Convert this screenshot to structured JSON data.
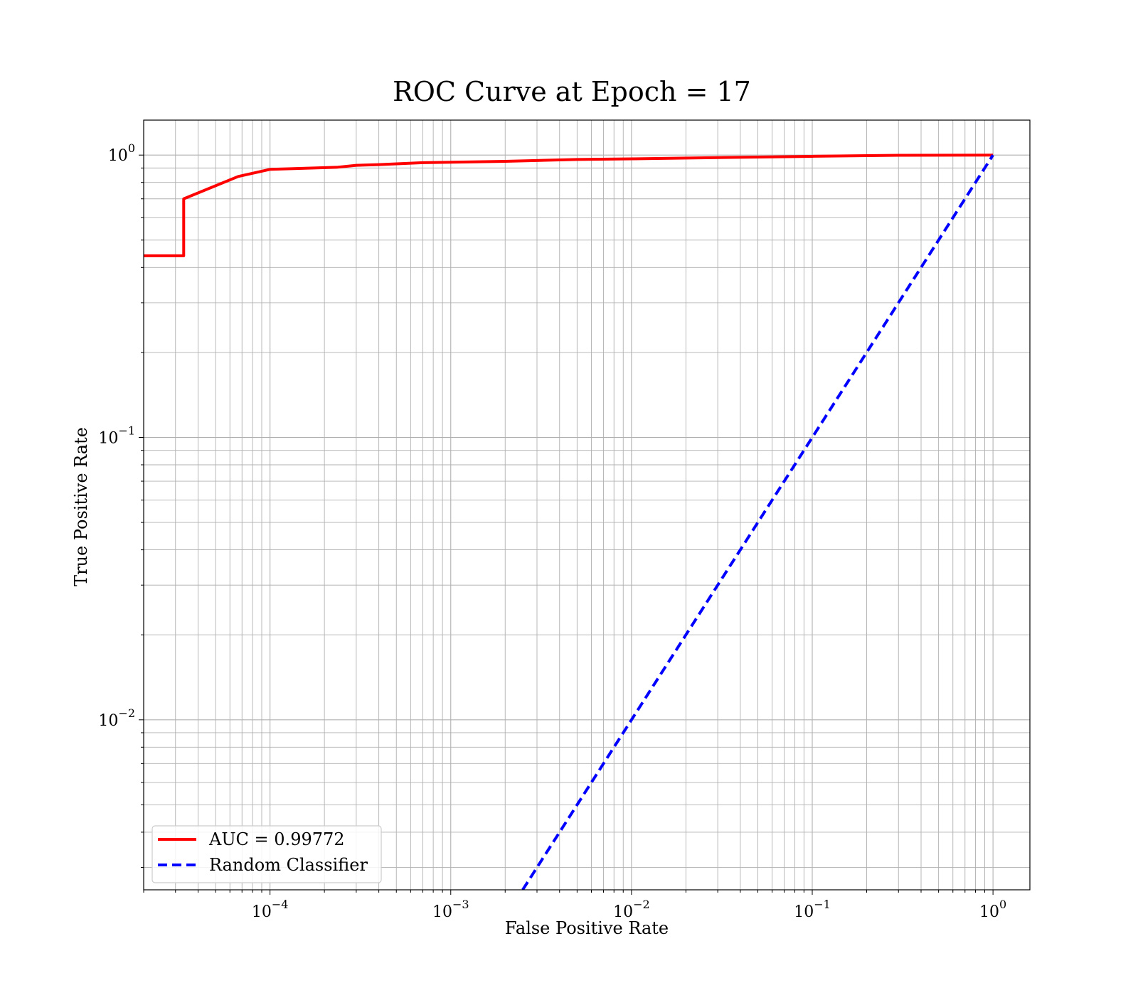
{
  "chart_data": {
    "type": "line",
    "title": "ROC Curve at Epoch = 17",
    "xlabel": "False Positive Rate",
    "ylabel": "True Positive Rate",
    "xscale": "log",
    "yscale": "log",
    "xlim": [
      2e-05,
      1.6
    ],
    "ylim": [
      0.0025,
      1.33
    ],
    "grid": true,
    "grid_minor": true,
    "legend_position": "lower-left",
    "x_ticks": [
      {
        "value": 0.0001,
        "base": "10",
        "exp": "−4"
      },
      {
        "value": 0.001,
        "base": "10",
        "exp": "−3"
      },
      {
        "value": 0.01,
        "base": "10",
        "exp": "−2"
      },
      {
        "value": 0.1,
        "base": "10",
        "exp": "−1"
      },
      {
        "value": 1,
        "base": "10",
        "exp": "0"
      }
    ],
    "y_ticks": [
      {
        "value": 0.01,
        "base": "10",
        "exp": "−2"
      },
      {
        "value": 0.1,
        "base": "10",
        "exp": "−1"
      },
      {
        "value": 1,
        "base": "10",
        "exp": "0"
      }
    ],
    "series": [
      {
        "name": "AUC = 0.99772",
        "color": "#ff0000",
        "style": "solid",
        "x": [
          2e-05,
          3.33e-05,
          3.33e-05,
          6.67e-05,
          0.0001,
          0.0002333,
          0.0003,
          0.0004,
          0.0007,
          0.002,
          0.005,
          0.01,
          0.03,
          0.1,
          0.3,
          1.0
        ],
        "y": [
          0.44,
          0.44,
          0.7,
          0.84,
          0.89,
          0.905,
          0.92,
          0.925,
          0.94,
          0.95,
          0.965,
          0.97,
          0.98,
          0.99,
          0.998,
          1.0
        ]
      },
      {
        "name": "Random Classifier",
        "color": "#0000ff",
        "style": "dashed",
        "x": [
          0.0025,
          1.0
        ],
        "y": [
          0.0025,
          1.0
        ]
      }
    ]
  }
}
